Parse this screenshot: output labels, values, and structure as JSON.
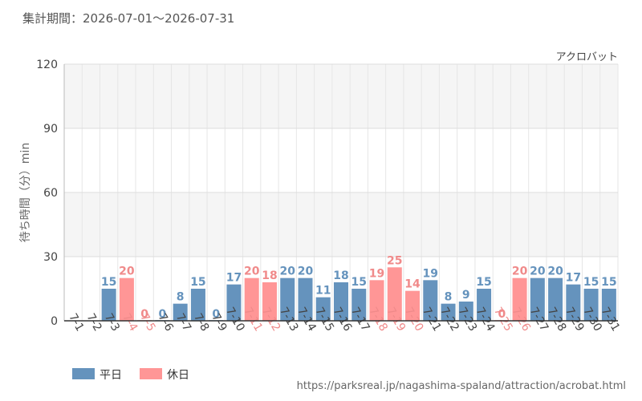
{
  "header": {
    "period_label": "集計期間：2026-07-01～2026-07-31"
  },
  "chart_data": {
    "type": "bar",
    "title": "",
    "subtitle": "アクロバット",
    "xlabel": "",
    "ylabel": "待ち時間（分）min",
    "ylim": [
      0,
      120
    ],
    "yticks": [
      0,
      30,
      60,
      90,
      120
    ],
    "grid": true,
    "legend_position": "bottom-left",
    "categories": [
      "7-1",
      "7-2",
      "7-3",
      "7-4",
      "7-5",
      "7-6",
      "7-7",
      "7-8",
      "7-9",
      "7-10",
      "7-11",
      "7-12",
      "7-13",
      "7-14",
      "7-15",
      "7-16",
      "7-17",
      "7-18",
      "7-19",
      "7-20",
      "7-21",
      "7-22",
      "7-23",
      "7-24",
      "7-25",
      "7-26",
      "7-27",
      "7-28",
      "7-29",
      "7-30",
      "7-31"
    ],
    "values": [
      null,
      null,
      15,
      20,
      0,
      0,
      8,
      15,
      0,
      17,
      20,
      18,
      20,
      20,
      11,
      18,
      15,
      19,
      25,
      14,
      19,
      8,
      9,
      15,
      0,
      20,
      20,
      20,
      17,
      15,
      15
    ],
    "day_types": [
      "weekday",
      "weekday",
      "weekday",
      "holiday",
      "holiday",
      "weekday",
      "weekday",
      "weekday",
      "weekday",
      "weekday",
      "holiday",
      "holiday",
      "weekday",
      "weekday",
      "weekday",
      "weekday",
      "weekday",
      "holiday",
      "holiday",
      "holiday",
      "weekday",
      "weekday",
      "weekday",
      "weekday",
      "holiday",
      "holiday",
      "weekday",
      "weekday",
      "weekday",
      "weekday",
      "weekday"
    ],
    "series": [
      {
        "name": "平日",
        "key": "weekday",
        "color": "#6593bd"
      },
      {
        "name": "休日",
        "key": "holiday",
        "color": "#ff9696"
      }
    ]
  },
  "colors": {
    "weekday_text": "#6593bd",
    "holiday_text": "#f08a8a",
    "axis_text": "#444444"
  },
  "footer": {
    "url": "https://parksreal.jp/nagashima-spaland/attraction/acrobat.html"
  }
}
